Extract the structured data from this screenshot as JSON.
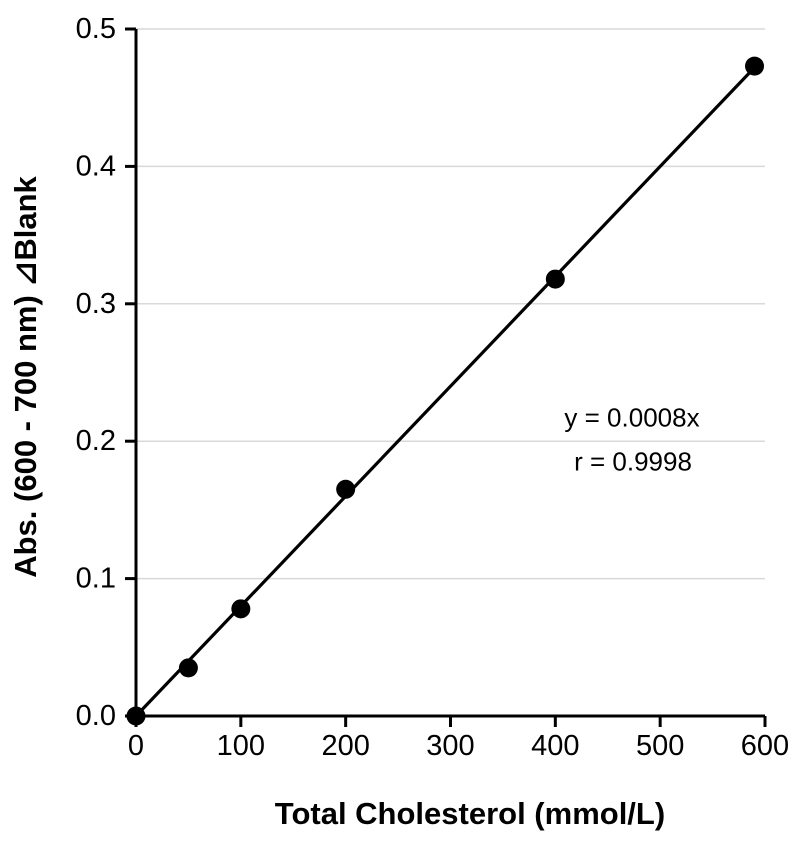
{
  "chart_data": {
    "type": "scatter",
    "title": "",
    "xlabel": "Total Cholesterol (mmol/L)",
    "ylabel": "Abs. (600 - 700 nm) ⊿Blank",
    "points": [
      {
        "x": 0,
        "y": 0.0
      },
      {
        "x": 50,
        "y": 0.035
      },
      {
        "x": 100,
        "y": 0.078
      },
      {
        "x": 200,
        "y": 0.165
      },
      {
        "x": 400,
        "y": 0.318
      },
      {
        "x": 590,
        "y": 0.473
      }
    ],
    "fit_line": {
      "label": "y = 0.0008x",
      "slope": 0.0008,
      "intercept": 0,
      "x_start": 0,
      "x_end": 590,
      "r_label": "r = 0.9998",
      "r": 0.9998
    },
    "xlim": [
      0,
      600
    ],
    "ylim": [
      0,
      0.5
    ],
    "x_ticks": [
      0,
      100,
      200,
      300,
      400,
      500,
      600
    ],
    "y_ticks": [
      0.0,
      0.1,
      0.2,
      0.3,
      0.4,
      0.5
    ],
    "y_tick_decimals": 1,
    "grid": "horizontal",
    "legend_position": "none",
    "marker_color": "#000000",
    "line_color": "#000000",
    "axis_color": "#000000",
    "gridline_color": "#d9d9d9",
    "background_color": "#ffffff"
  }
}
